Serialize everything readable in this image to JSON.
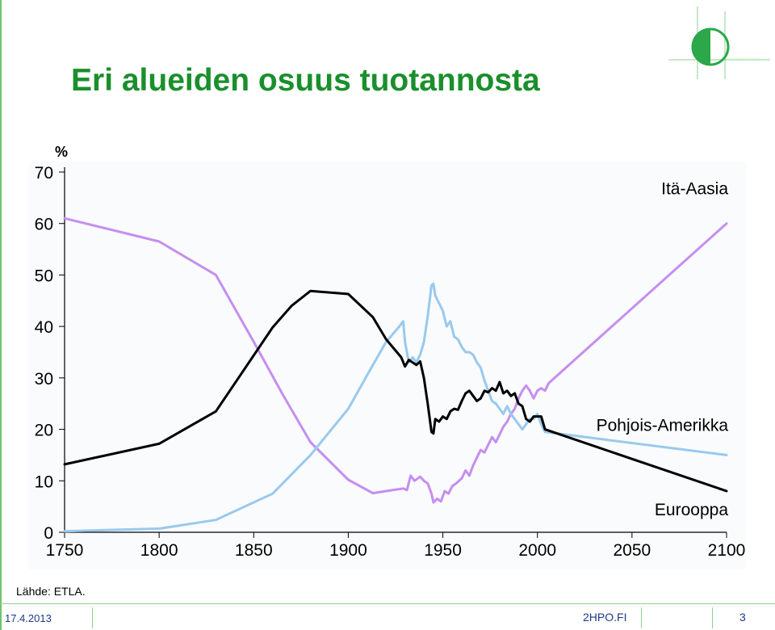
{
  "slide": {
    "title": "Eri alueiden osuus tuotannosta",
    "source": "Lähde: ETLA.",
    "date": "17.4.2013",
    "site": "2HPO.FI",
    "page_number": "3"
  },
  "colors": {
    "title": "#1a8f2c",
    "footer_text": "#1a3a8a",
    "europe": "#000000",
    "north_america": "#99c9ee",
    "east_asia": "#c58ef0"
  },
  "chart_data": {
    "type": "line",
    "title": "",
    "ylabel": "%",
    "xlabel": "",
    "xlim": [
      1750,
      2100
    ],
    "ylim": [
      0,
      70
    ],
    "x_ticks": [
      1750,
      1800,
      1850,
      1900,
      1950,
      2000,
      2050,
      2100
    ],
    "y_ticks": [
      0,
      10,
      20,
      30,
      40,
      50,
      60,
      70
    ],
    "grid": false,
    "legend": "inline labels at right end of lines",
    "series": [
      {
        "name": "Itä-Aasia",
        "color": "#c58ef0",
        "points": [
          [
            1750,
            61
          ],
          [
            1800,
            56.5
          ],
          [
            1830,
            50
          ],
          [
            1850,
            37
          ],
          [
            1865,
            27
          ],
          [
            1880,
            17.5
          ],
          [
            1900,
            10.2
          ],
          [
            1913,
            7.6
          ],
          [
            1920,
            8
          ],
          [
            1929,
            8.5
          ],
          [
            1931,
            8.2
          ],
          [
            1933,
            11
          ],
          [
            1935,
            10
          ],
          [
            1938,
            10.8
          ],
          [
            1940,
            10
          ],
          [
            1942,
            9.5
          ],
          [
            1944,
            7.5
          ],
          [
            1945,
            5.8
          ],
          [
            1947,
            6.5
          ],
          [
            1949,
            6
          ],
          [
            1951,
            8
          ],
          [
            1953,
            7.5
          ],
          [
            1955,
            9
          ],
          [
            1957,
            9.5
          ],
          [
            1960,
            10.5
          ],
          [
            1962,
            12
          ],
          [
            1964,
            11
          ],
          [
            1966,
            13
          ],
          [
            1968,
            14.5
          ],
          [
            1970,
            16
          ],
          [
            1972,
            15.5
          ],
          [
            1974,
            17
          ],
          [
            1976,
            18.5
          ],
          [
            1978,
            17.5
          ],
          [
            1980,
            19
          ],
          [
            1982,
            20.5
          ],
          [
            1984,
            21.5
          ],
          [
            1986,
            23
          ],
          [
            1988,
            24
          ],
          [
            1990,
            26
          ],
          [
            1992,
            27.5
          ],
          [
            1994,
            28.5
          ],
          [
            1996,
            27.5
          ],
          [
            1998,
            26
          ],
          [
            2000,
            27.5
          ],
          [
            2002,
            28
          ],
          [
            2004,
            27.5
          ],
          [
            2006,
            29
          ],
          [
            2100,
            60
          ]
        ]
      },
      {
        "name": "Pohjois-Amerikka",
        "color": "#99c9ee",
        "points": [
          [
            1750,
            0.2
          ],
          [
            1800,
            0.7
          ],
          [
            1830,
            2.4
          ],
          [
            1860,
            7.5
          ],
          [
            1880,
            15
          ],
          [
            1900,
            24
          ],
          [
            1913,
            32.5
          ],
          [
            1920,
            37
          ],
          [
            1927,
            40
          ],
          [
            1929,
            41
          ],
          [
            1930,
            37
          ],
          [
            1932,
            33
          ],
          [
            1934,
            34
          ],
          [
            1936,
            33
          ],
          [
            1938,
            34.5
          ],
          [
            1940,
            37
          ],
          [
            1942,
            42
          ],
          [
            1943,
            45
          ],
          [
            1944,
            48
          ],
          [
            1945,
            48.3
          ],
          [
            1946,
            46
          ],
          [
            1948,
            44.5
          ],
          [
            1950,
            43
          ],
          [
            1952,
            40
          ],
          [
            1954,
            41
          ],
          [
            1956,
            38
          ],
          [
            1958,
            37.5
          ],
          [
            1960,
            36
          ],
          [
            1962,
            35
          ],
          [
            1964,
            35
          ],
          [
            1966,
            34.5
          ],
          [
            1968,
            33
          ],
          [
            1970,
            32
          ],
          [
            1972,
            29.5
          ],
          [
            1974,
            27.5
          ],
          [
            1976,
            25.5
          ],
          [
            1978,
            25
          ],
          [
            1980,
            24
          ],
          [
            1982,
            23
          ],
          [
            1984,
            24.5
          ],
          [
            1986,
            23
          ],
          [
            1988,
            22
          ],
          [
            1990,
            21
          ],
          [
            1992,
            20
          ],
          [
            1994,
            21
          ],
          [
            1996,
            22
          ],
          [
            1998,
            22
          ],
          [
            2000,
            23
          ],
          [
            2002,
            21
          ],
          [
            2004,
            19.5
          ],
          [
            2100,
            15
          ]
        ]
      },
      {
        "name": "Eurooppa",
        "color": "#000000",
        "points": [
          [
            1750,
            13.2
          ],
          [
            1800,
            17.2
          ],
          [
            1830,
            23.5
          ],
          [
            1860,
            39.8
          ],
          [
            1870,
            44
          ],
          [
            1880,
            46.9
          ],
          [
            1900,
            46.3
          ],
          [
            1913,
            41.8
          ],
          [
            1920,
            37.5
          ],
          [
            1928,
            34
          ],
          [
            1930,
            32.2
          ],
          [
            1932,
            33.5
          ],
          [
            1934,
            33
          ],
          [
            1936,
            32.5
          ],
          [
            1938,
            33.2
          ],
          [
            1940,
            30
          ],
          [
            1942,
            25
          ],
          [
            1944,
            19.5
          ],
          [
            1945,
            19.2
          ],
          [
            1946,
            22
          ],
          [
            1948,
            21.5
          ],
          [
            1950,
            22.5
          ],
          [
            1952,
            22
          ],
          [
            1954,
            23.5
          ],
          [
            1956,
            24
          ],
          [
            1958,
            23.8
          ],
          [
            1960,
            25.5
          ],
          [
            1962,
            27
          ],
          [
            1964,
            27.5
          ],
          [
            1966,
            26.5
          ],
          [
            1968,
            25.5
          ],
          [
            1970,
            26
          ],
          [
            1972,
            27.5
          ],
          [
            1974,
            27.2
          ],
          [
            1976,
            28
          ],
          [
            1978,
            27.5
          ],
          [
            1980,
            29.2
          ],
          [
            1982,
            27
          ],
          [
            1984,
            27.5
          ],
          [
            1986,
            26.5
          ],
          [
            1988,
            27
          ],
          [
            1990,
            25
          ],
          [
            1992,
            24.5
          ],
          [
            1994,
            22
          ],
          [
            1996,
            21.5
          ],
          [
            1998,
            22.5
          ],
          [
            2000,
            22.5
          ],
          [
            2002,
            22.5
          ],
          [
            2004,
            20
          ],
          [
            2100,
            8
          ]
        ]
      }
    ]
  }
}
